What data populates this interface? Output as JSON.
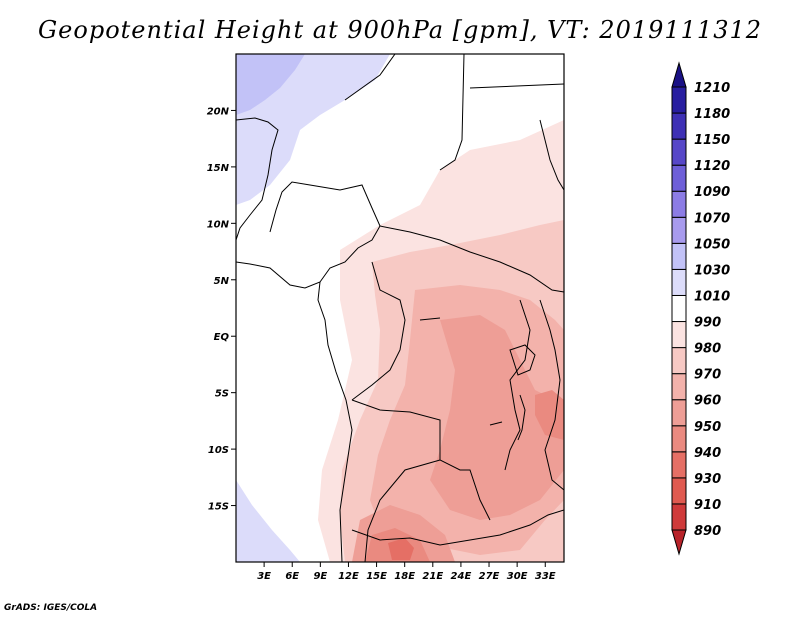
{
  "title": "Geopotential Height at 900hPa [gpm], VT: 2019111312",
  "credit": "GrADS: IGES/COLA",
  "map": {
    "variable": "Geopotential Height",
    "level": "900hPa",
    "units": "gpm",
    "valid_time": "2019111312",
    "lat_range": [
      -20,
      25
    ],
    "lon_range": [
      0,
      35
    ],
    "lat_ticks": [
      "20N",
      "15N",
      "10N",
      "5N",
      "EQ",
      "5S",
      "10S",
      "15S"
    ],
    "lon_ticks": [
      "3E",
      "6E",
      "9E",
      "12E",
      "15E",
      "18E",
      "21E",
      "24E",
      "27E",
      "30E",
      "33E"
    ]
  },
  "colorbar": {
    "levels": [
      "890",
      "910",
      "930",
      "940",
      "950",
      "960",
      "970",
      "980",
      "990",
      "1010",
      "1030",
      "1050",
      "1070",
      "1090",
      "1120",
      "1150",
      "1180",
      "1210"
    ],
    "colors": [
      "#b8232a",
      "#cf3a3a",
      "#e05a50",
      "#e56f65",
      "#ea8a80",
      "#ee9e96",
      "#f3b2ab",
      "#f7c9c4",
      "#fbe3e1",
      "#ffffff",
      "#dcdcfa",
      "#c2c2f7",
      "#a89bee",
      "#8c7ce5",
      "#6e5fd8",
      "#5747c8",
      "#3e30b5",
      "#281ea0",
      "#1a1185"
    ]
  }
}
